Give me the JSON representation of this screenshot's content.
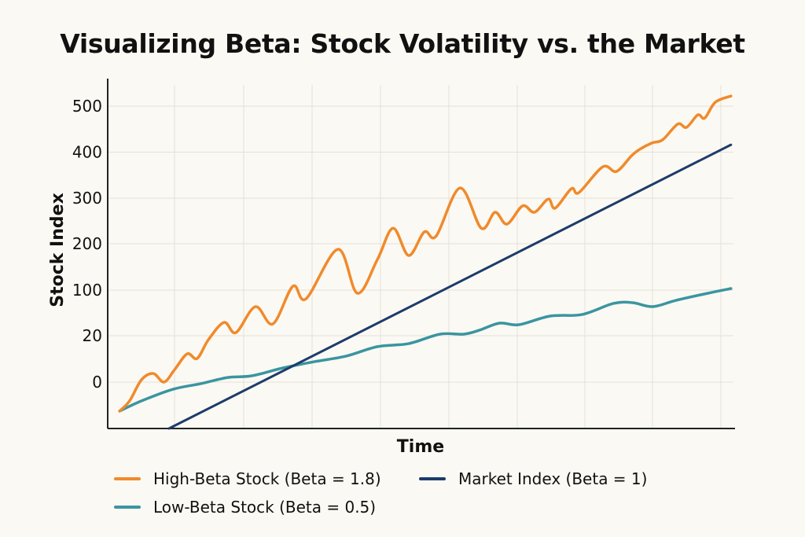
{
  "chart_data": {
    "type": "line",
    "title": "Visualizing Beta: Stock Volatility vs. the Market",
    "xlabel": "Time",
    "ylabel": "Stock Index",
    "y_tick_labels": [
      "0",
      "20",
      "100",
      "200",
      "300",
      "400",
      "500"
    ],
    "xlim": [
      0,
      100
    ],
    "grid": true,
    "legend_placement": "bottom",
    "series": [
      {
        "name": "High-Beta Stock (Beta = 1.8)",
        "color": "#f08a2c",
        "points": [
          [
            1.9,
            -12.5
          ],
          [
            3.5,
            -8.1
          ],
          [
            5.4,
            1.0
          ],
          [
            7.3,
            3.7
          ],
          [
            9.0,
            0
          ],
          [
            10.7,
            5.4
          ],
          [
            12.7,
            12.2
          ],
          [
            14.3,
            10.2
          ],
          [
            16.1,
            18.3
          ],
          [
            18.6,
            43.4
          ],
          [
            20.5,
            25.5
          ],
          [
            23.6,
            71
          ],
          [
            26.4,
            40.7
          ],
          [
            29.6,
            108.5
          ],
          [
            31.7,
            84.8
          ],
          [
            36.8,
            188
          ],
          [
            39.9,
            94.5
          ],
          [
            43.1,
            166
          ],
          [
            45.6,
            234
          ],
          [
            48.1,
            174.6
          ],
          [
            50.6,
            225.9
          ],
          [
            52.5,
            217
          ],
          [
            56.3,
            322
          ],
          [
            59.7,
            234
          ],
          [
            61.9,
            269
          ],
          [
            63.8,
            243
          ],
          [
            66.3,
            283
          ],
          [
            68.2,
            269
          ],
          [
            70.4,
            298
          ],
          [
            71.5,
            278
          ],
          [
            74.1,
            320.5
          ],
          [
            75.3,
            312
          ],
          [
            79.1,
            368
          ],
          [
            81.3,
            358
          ],
          [
            83.7,
            392
          ],
          [
            85.0,
            406
          ],
          [
            87.0,
            420
          ],
          [
            88.7,
            427
          ],
          [
            91.1,
            461
          ],
          [
            92.5,
            454
          ],
          [
            94.3,
            481
          ],
          [
            95.4,
            474
          ],
          [
            97.1,
            508.5
          ],
          [
            99.6,
            522
          ]
        ]
      },
      {
        "name": "Market Index (Beta = 1)",
        "color": "#1d3b6b",
        "points": [
          [
            9.8,
            -20
          ],
          [
            99.6,
            416
          ]
        ]
      },
      {
        "name": "Low-Beta Stock (Beta = 0.5)",
        "color": "#3a95a0",
        "points": [
          [
            1.9,
            -12.5
          ],
          [
            5.4,
            -8.1
          ],
          [
            10.4,
            -3.1
          ],
          [
            14.8,
            -0.7
          ],
          [
            19.2,
            2.0
          ],
          [
            23.0,
            2.7
          ],
          [
            28.0,
            6.1
          ],
          [
            33.0,
            8.8
          ],
          [
            38.1,
            11.2
          ],
          [
            43.1,
            15.3
          ],
          [
            48.1,
            16.6
          ],
          [
            53.1,
            22.8
          ],
          [
            56.9,
            22.8
          ],
          [
            59.4,
            29.7
          ],
          [
            62.6,
            42.1
          ],
          [
            65.7,
            39.3
          ],
          [
            70.7,
            54.5
          ],
          [
            75.8,
            57.2
          ],
          [
            80.8,
            76.6
          ],
          [
            83.9,
            77.9
          ],
          [
            87.1,
            71
          ],
          [
            90.8,
            82
          ],
          [
            95.9,
            94.5
          ],
          [
            99.6,
            103.4
          ]
        ]
      }
    ]
  }
}
